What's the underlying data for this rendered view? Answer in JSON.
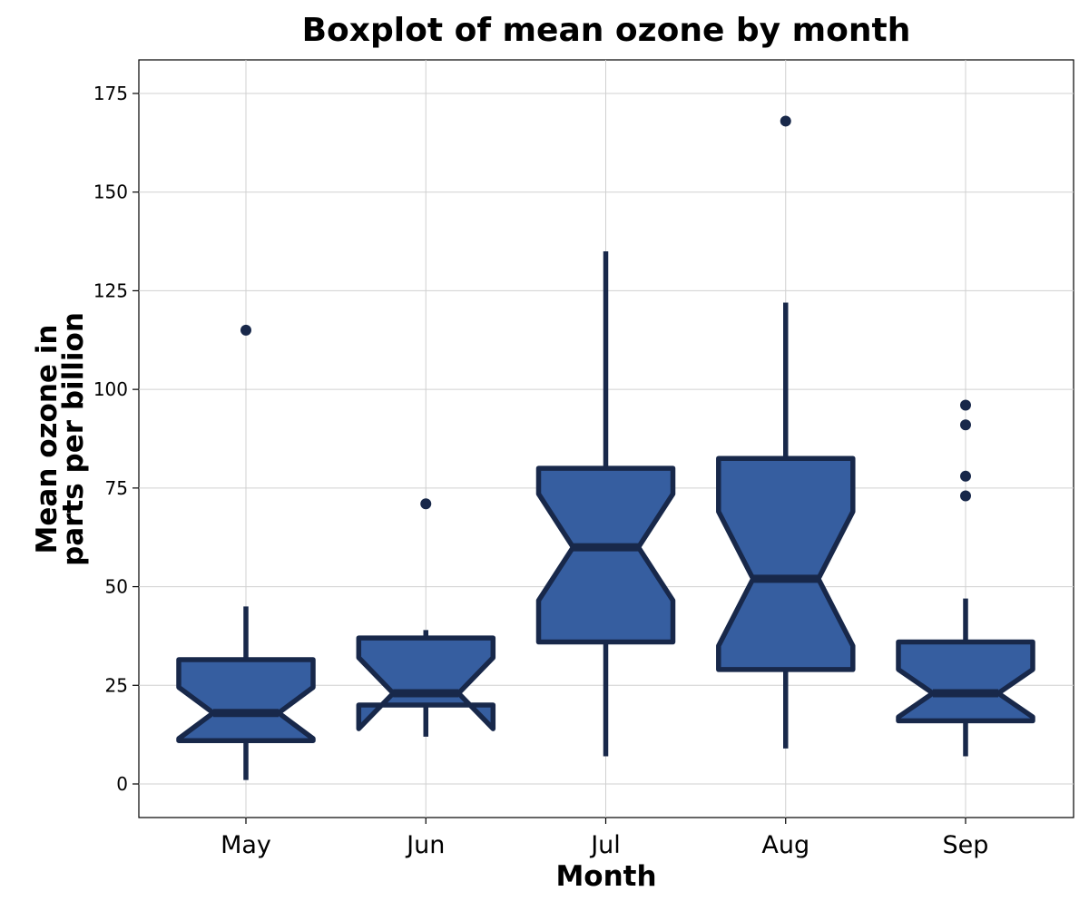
{
  "chart_data": {
    "type": "boxplot",
    "notched": true,
    "title": "Boxplot of mean ozone by month",
    "xlabel": "Month",
    "ylabel": [
      "Mean ozone in",
      "parts per billion"
    ],
    "categories": [
      "May",
      "Jun",
      "Jul",
      "Aug",
      "Sep"
    ],
    "ylim": [
      -8,
      183
    ],
    "yticks": [
      0,
      25,
      50,
      75,
      100,
      125,
      150,
      175
    ],
    "grid": true,
    "boxes": [
      {
        "category": "May",
        "whisker_low": 1,
        "q1": 11,
        "median": 18,
        "q3": 31.5,
        "whisker_high": 45,
        "notch_low": 11.5,
        "notch_high": 24.5,
        "outliers": [
          115
        ]
      },
      {
        "category": "Jun",
        "whisker_low": 12,
        "q1": 20,
        "median": 23,
        "q3": 37,
        "whisker_high": 39,
        "notch_low": 14,
        "notch_high": 32,
        "outliers": [
          71
        ]
      },
      {
        "category": "Jul",
        "whisker_low": 7,
        "q1": 36,
        "median": 60,
        "q3": 80,
        "whisker_high": 135,
        "notch_low": 46.5,
        "notch_high": 73.5,
        "outliers": []
      },
      {
        "category": "Aug",
        "whisker_low": 9,
        "q1": 29,
        "median": 52,
        "q3": 82.5,
        "whisker_high": 122,
        "notch_low": 35,
        "notch_high": 69,
        "outliers": [
          168
        ]
      },
      {
        "category": "Sep",
        "whisker_low": 7,
        "q1": 16,
        "median": 23,
        "q3": 36,
        "whisker_high": 47,
        "notch_low": 17,
        "notch_high": 29,
        "outliers": [
          73,
          78,
          91,
          96
        ]
      }
    ],
    "colors": {
      "box_fill": "#365ea0",
      "box_stroke": "#18284a",
      "grid": "#d0d0d0",
      "axis": "#000000"
    }
  }
}
